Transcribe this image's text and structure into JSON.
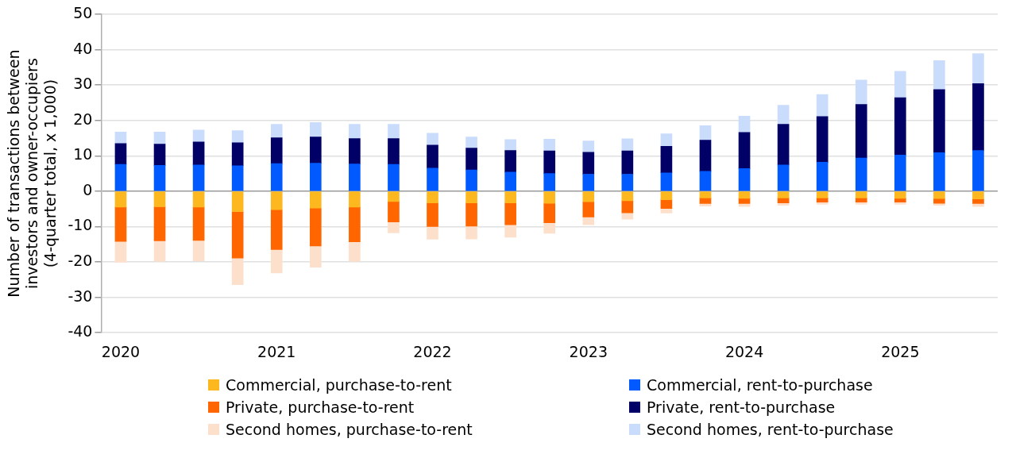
{
  "chart_data": {
    "type": "bar",
    "stacked": true,
    "ylabel": "Number of transactions between investors and owner-occupiers (4-quarter total, x 1,000)",
    "categories": [
      "2020",
      null,
      null,
      null,
      "2021",
      null,
      null,
      null,
      "2022",
      null,
      null,
      null,
      "2023",
      null,
      null,
      null,
      "2024",
      null,
      null,
      null,
      "2025",
      null,
      null
    ],
    "series": [
      {
        "name": "Commercial, purchase-to-rent",
        "color": "#fdb71f",
        "values": [
          -4.5,
          -4.4,
          -4.5,
          -5.8,
          -5.2,
          -4.8,
          -4.5,
          -2.9,
          -3.3,
          -3.3,
          -3.3,
          -3.4,
          -3.0,
          -2.7,
          -2.4,
          -1.9,
          -2.0,
          -1.9,
          -1.9,
          -1.9,
          -2.0,
          -2.1,
          -2.2
        ]
      },
      {
        "name": "Commercial, rent-to-purchase",
        "color": "#005aff",
        "values": [
          7.6,
          7.3,
          7.4,
          7.2,
          7.8,
          7.9,
          7.7,
          7.6,
          6.5,
          6.0,
          5.4,
          5.0,
          4.8,
          4.8,
          5.2,
          5.6,
          6.4,
          7.4,
          8.2,
          9.4,
          10.2,
          10.9,
          11.5
        ]
      },
      {
        "name": "Private, purchase-to-rent",
        "color": "#ff6600",
        "values": [
          -9.7,
          -9.6,
          -9.4,
          -13.1,
          -11.3,
          -10.7,
          -9.8,
          -5.8,
          -6.7,
          -6.6,
          -6.2,
          -5.5,
          -4.3,
          -3.4,
          -2.5,
          -1.6,
          -1.5,
          -1.4,
          -1.2,
          -1.2,
          -1.1,
          -1.3,
          -1.3
        ]
      },
      {
        "name": "Private, rent-to-purchase",
        "color": "#000066",
        "values": [
          5.9,
          6.0,
          6.5,
          6.5,
          7.3,
          7.4,
          7.2,
          7.3,
          6.5,
          6.2,
          6.1,
          6.4,
          6.2,
          6.6,
          7.5,
          8.8,
          10.2,
          11.5,
          12.9,
          15.1,
          16.2,
          17.8,
          18.9
        ]
      },
      {
        "name": "Second homes, purchase-to-rent",
        "color": "#fde0cc",
        "values": [
          -5.9,
          -5.8,
          -5.8,
          -7.5,
          -6.6,
          -6.0,
          -5.5,
          -3.1,
          -3.6,
          -3.6,
          -3.5,
          -3.0,
          -2.2,
          -1.8,
          -1.3,
          -0.7,
          -0.8,
          -0.7,
          -0.6,
          -0.6,
          -0.6,
          -0.6,
          -0.8
        ]
      },
      {
        "name": "Second homes, rent-to-purchase",
        "color": "#c9dcfc",
        "values": [
          3.2,
          3.4,
          3.4,
          3.4,
          3.8,
          4.1,
          4.0,
          4.0,
          3.4,
          3.1,
          3.1,
          3.3,
          3.2,
          3.4,
          3.5,
          4.1,
          4.6,
          5.4,
          6.2,
          6.9,
          7.5,
          8.2,
          8.5
        ]
      }
    ],
    "ylim": [
      -40,
      50
    ],
    "yticks": [
      -40,
      -30,
      -20,
      -10,
      0,
      10,
      20,
      30,
      40,
      50
    ],
    "grid": "y",
    "legend": "bottom"
  }
}
